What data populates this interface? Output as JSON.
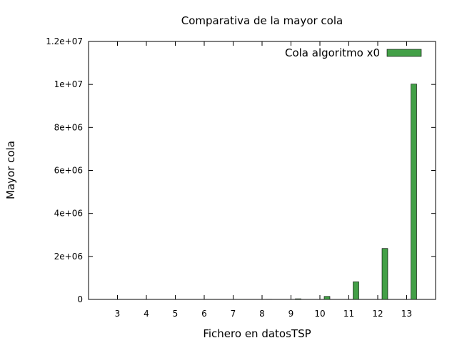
{
  "chart_data": {
    "type": "bar",
    "title": "Comparativa de la mayor cola",
    "xlabel": "Fichero en datosTSP",
    "ylabel": "Mayor cola",
    "categories": [
      "3",
      "4",
      "5",
      "6",
      "7",
      "8",
      "9",
      "10",
      "11",
      "12",
      "13"
    ],
    "series": [
      {
        "name": "Cola algoritmo x0",
        "color": "#43a047",
        "values": [
          20,
          60,
          250,
          1200,
          3000,
          8000,
          30000,
          140000,
          820000,
          2370000,
          10020000
        ]
      }
    ],
    "ylim": [
      0,
      12000000
    ],
    "yticks": [
      {
        "value": 0,
        "label": "0"
      },
      {
        "value": 2000000,
        "label": "2e+06"
      },
      {
        "value": 4000000,
        "label": "4e+06"
      },
      {
        "value": 6000000,
        "label": "6e+06"
      },
      {
        "value": 8000000,
        "label": "8e+06"
      },
      {
        "value": 10000000,
        "label": "1e+07"
      },
      {
        "value": 12000000,
        "label": "1.2e+07"
      }
    ],
    "legend_position": "top-right",
    "grid": false
  }
}
